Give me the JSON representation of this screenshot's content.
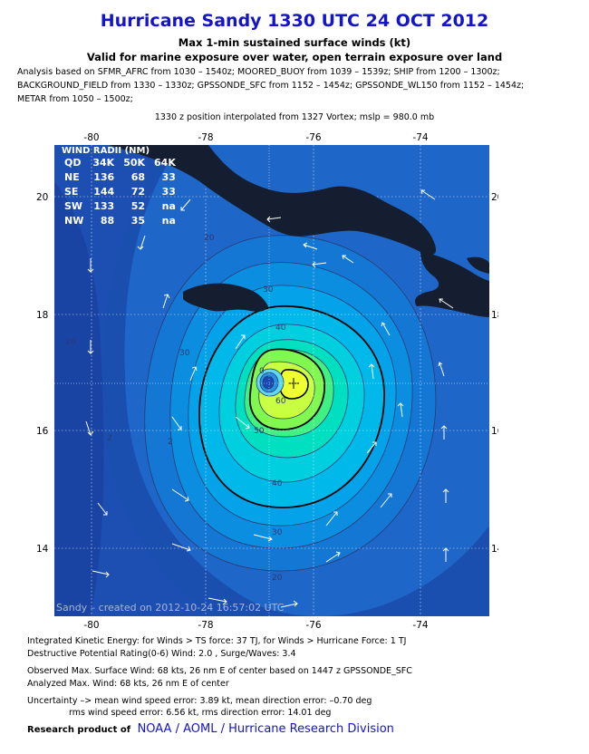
{
  "header": {
    "title": "Hurricane Sandy 1330 UTC 24 OCT 2012",
    "subtitle1": "Max 1-min sustained surface winds (kt)",
    "subtitle2": "Valid for marine exposure over water, open terrain exposure over land",
    "analysis_line1": "Analysis based on SFMR_AFRC from 1030 – 1540z; MOORED_BUOY from 1039 – 1539z; SHIP from 1200 – 1300z;",
    "analysis_line2": "BACKGROUND_FIELD from 1330 – 1330z; GPSSONDE_SFC from 1152 – 1454z; GPSSONDE_WL150 from 1152 – 1454z;",
    "analysis_line3": "METAR from 1050 – 1500z;",
    "position_note": "1330 z position interpolated from 1327 Vortex; mslp = 980.0 mb"
  },
  "axes": {
    "x_ticks": [
      "-80",
      "-78",
      "-76",
      "-74"
    ],
    "y_ticks": [
      "20",
      "18",
      "16",
      "14"
    ]
  },
  "wind_radii": {
    "title": "WIND RADII (NM)",
    "columns": [
      "QD",
      "34K",
      "50K",
      "64K"
    ],
    "rows": [
      [
        "NE",
        "136",
        "68",
        "33"
      ],
      [
        "SE",
        "144",
        "72",
        "33"
      ],
      [
        "SW",
        "133",
        "52",
        "na"
      ],
      [
        "NW",
        "88",
        "35",
        "na"
      ]
    ]
  },
  "contour_labels": {
    "c20a": "20",
    "c20b": "20",
    "c20c": "20",
    "c30a": "30",
    "c30b": "30",
    "c30c": "30",
    "c40a": "40",
    "c40b": "40",
    "c50": "50",
    "c60": "60",
    "c0": "0",
    "c2a": "2",
    "c2b": "2"
  },
  "map_credit": "Sandy – created on 2012-10-24 16:57:02 UTC",
  "footer": {
    "line1": "Integrated Kinetic Energy: for Winds > TS force: 37 TJ, for Winds > Hurricane Force: 1 TJ",
    "line2": "Destructive Potential Rating(0-6)  Wind: 2.0 , Surge/Waves: 3.4",
    "line3": "Observed Max. Surface Wind: 68 kts, 26 nm E of center based on 1447 z GPSSONDE_SFC",
    "line4": "Analyzed Max. Wind: 68 kts, 26 nm  E of center",
    "line5": "Uncertainty –> mean wind speed error: 3.89 kt, mean direction error:  –0.70 deg",
    "line6": "rms wind speed error: 6.56 kt, rms direction error: 14.01 deg",
    "research_label": "Research product of",
    "research_org": "NOAA  /  AOML  /  Hurricane Research Division"
  },
  "colors": {
    "title": "#1414c8",
    "field_low": "#1a55b8",
    "field_mid": "#00c0e8",
    "field_high": "#e8ff30",
    "land": "#141e30"
  }
}
